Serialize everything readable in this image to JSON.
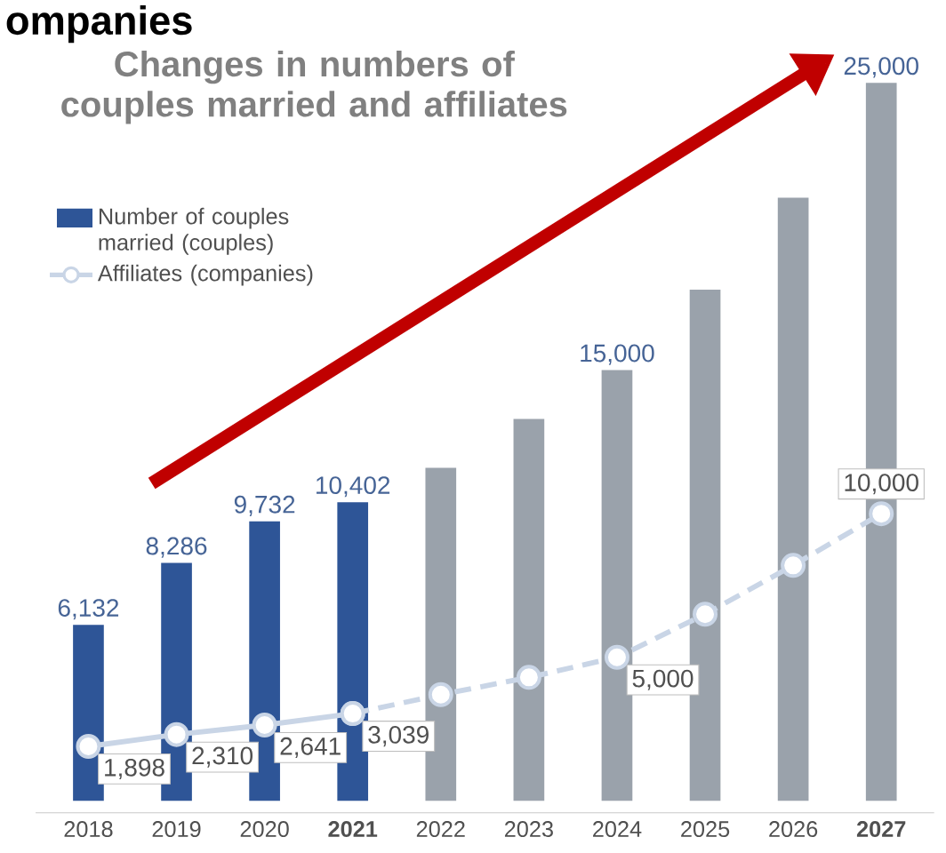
{
  "chart_data": {
    "type": "bar",
    "title": "Changes in numbers of couples married and affiliates",
    "annotations": [
      "ompanies"
    ],
    "categories": [
      "2018",
      "2019",
      "2020",
      "**2021**",
      "2022",
      "2023",
      "2024",
      "2025",
      "2026",
      "**2027**"
    ],
    "series": [
      {
        "name": "Number of couples married (couples)",
        "type": "bar",
        "colors": [
          "#2e5597",
          "#2e5597",
          "#2e5597",
          "#2e5597",
          "#9aa2ab",
          "#9aa2ab",
          "#9aa2ab",
          "#9aa2ab",
          "#9aa2ab",
          "#9aa2ab"
        ],
        "values": [
          6132,
          8286,
          9732,
          10402,
          11600,
          13300,
          15000,
          17800,
          21000,
          25000
        ],
        "value_labels": [
          "6,132",
          "8,286",
          "9,732",
          "10,402",
          null,
          null,
          "15,000",
          null,
          null,
          "25,000"
        ]
      },
      {
        "name": "Affiliates (companies)",
        "type": "line",
        "color": "#c9d5e6",
        "line_style": "solid",
        "values": [
          1898,
          2310,
          2641,
          3039,
          null,
          null,
          null,
          null,
          null,
          null
        ],
        "value_labels": [
          "1,898",
          "2,310",
          "2,641",
          "3,039",
          null,
          null,
          null,
          null,
          null,
          null
        ]
      },
      {
        "type": "line",
        "color": "#c9d5e6",
        "line_style": "dashed",
        "values": [
          null,
          null,
          null,
          3039,
          3700,
          4300,
          5000,
          6500,
          8200,
          10000
        ],
        "value_labels": [
          null,
          null,
          null,
          null,
          null,
          null,
          "5,000",
          null,
          null,
          "10,000"
        ]
      }
    ],
    "tick_labels": "x",
    "marker": "circle",
    "legend": "top left"
  }
}
